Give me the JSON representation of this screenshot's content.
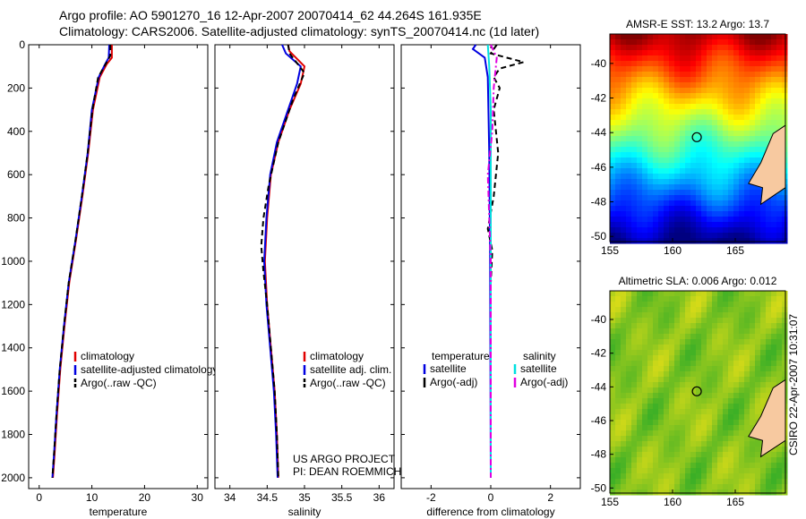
{
  "header": {
    "line1": "Argo profile: AO 5901270_16 12-Apr-2007 20070414_62 44.264S 161.935E",
    "line2": "Climatology: CARS2006. Satellite-adjusted climatology: synTS_20070414.nc (1d later)"
  },
  "side_label": "CSIRO 22-Apr-2007 10:31:07",
  "credit": [
    "US ARGO PROJECT",
    "PI: DEAN ROEMMICH"
  ],
  "colors": {
    "climatology": "#e00000",
    "satellite": "#0000e0",
    "argo": "#000000",
    "satellite_salinity": "#00e0e0",
    "argo_salinity": "#e000e0"
  },
  "chart_data": [
    {
      "type": "line",
      "xlabel": "temperature",
      "ylabel": "",
      "xlim": [
        -2,
        32
      ],
      "ylim": [
        2050,
        0
      ],
      "y_inverted": true,
      "xticks": [
        0,
        10,
        20,
        30
      ],
      "yticks": [
        0,
        200,
        400,
        600,
        800,
        1000,
        1200,
        1400,
        1600,
        1800,
        2000
      ],
      "legend": [
        "climatology",
        "satellite-adjusted climatology",
        "Argo(..raw -QC)"
      ],
      "legend_placement": "lower-right",
      "series": [
        {
          "name": "climatology",
          "color": "#e00000",
          "style": "solid",
          "points": [
            [
              13.8,
              0
            ],
            [
              13.8,
              60
            ],
            [
              12.8,
              90
            ],
            [
              11.5,
              150
            ],
            [
              10.2,
              300
            ],
            [
              9.3,
              500
            ],
            [
              8.2,
              700
            ],
            [
              7,
              900
            ],
            [
              5.7,
              1100
            ],
            [
              4.8,
              1300
            ],
            [
              4,
              1500
            ],
            [
              3.4,
              1700
            ],
            [
              2.9,
              1900
            ],
            [
              2.6,
              2000
            ]
          ]
        },
        {
          "name": "satellite-adjusted climatology",
          "color": "#0000e0",
          "style": "solid",
          "points": [
            [
              13.3,
              0
            ],
            [
              13.2,
              60
            ],
            [
              12.5,
              90
            ],
            [
              11.3,
              150
            ],
            [
              10,
              300
            ],
            [
              9.2,
              500
            ],
            [
              8.1,
              700
            ],
            [
              6.9,
              900
            ],
            [
              5.6,
              1100
            ],
            [
              4.7,
              1300
            ],
            [
              3.9,
              1500
            ],
            [
              3.3,
              1700
            ],
            [
              2.8,
              1900
            ],
            [
              2.5,
              2000
            ]
          ]
        },
        {
          "name": "Argo(..raw -QC)",
          "color": "#000000",
          "style": "dashed",
          "points": [
            [
              13.5,
              0
            ],
            [
              13.5,
              50
            ],
            [
              12.6,
              90
            ],
            [
              11.2,
              150
            ],
            [
              10.1,
              300
            ],
            [
              9.2,
              500
            ],
            [
              8.1,
              700
            ],
            [
              6.9,
              900
            ],
            [
              5.6,
              1100
            ],
            [
              4.7,
              1300
            ],
            [
              3.9,
              1500
            ],
            [
              3.3,
              1700
            ],
            [
              2.8,
              1900
            ],
            [
              2.5,
              2000
            ]
          ]
        }
      ]
    },
    {
      "type": "line",
      "xlabel": "salinity",
      "ylabel": "",
      "xlim": [
        33.8,
        36.2
      ],
      "ylim": [
        2050,
        0
      ],
      "y_inverted": true,
      "xticks": [
        34,
        34.5,
        35,
        35.5,
        36
      ],
      "xtick_labels": [
        "34",
        "34.5",
        "35",
        "35.5",
        "36"
      ],
      "legend": [
        "climatology",
        "satellite adj. clim.",
        "Argo(..raw -QC)"
      ],
      "legend_placement": "lower-right",
      "series": [
        {
          "name": "climatology",
          "color": "#e00000",
          "style": "solid",
          "points": [
            [
              34.78,
              0
            ],
            [
              34.8,
              30
            ],
            [
              35.0,
              100
            ],
            [
              34.95,
              180
            ],
            [
              34.8,
              300
            ],
            [
              34.65,
              450
            ],
            [
              34.55,
              600
            ],
            [
              34.5,
              800
            ],
            [
              34.47,
              1000
            ],
            [
              34.5,
              1200
            ],
            [
              34.55,
              1400
            ],
            [
              34.6,
              1600
            ],
            [
              34.63,
              1800
            ],
            [
              34.65,
              2000
            ]
          ]
        },
        {
          "name": "satellite adj. clim.",
          "color": "#0000e0",
          "style": "solid",
          "points": [
            [
              34.7,
              0
            ],
            [
              34.75,
              40
            ],
            [
              34.95,
              100
            ],
            [
              34.9,
              180
            ],
            [
              34.78,
              300
            ],
            [
              34.63,
              450
            ],
            [
              34.54,
              600
            ],
            [
              34.49,
              800
            ],
            [
              34.46,
              1000
            ],
            [
              34.49,
              1200
            ],
            [
              34.54,
              1400
            ],
            [
              34.59,
              1600
            ],
            [
              34.62,
              1800
            ],
            [
              34.64,
              2000
            ]
          ]
        },
        {
          "name": "Argo(..raw -QC)",
          "color": "#000000",
          "style": "dashed",
          "points": [
            [
              34.78,
              0
            ],
            [
              34.8,
              40
            ],
            [
              35.0,
              130
            ],
            [
              34.85,
              250
            ],
            [
              34.65,
              450
            ],
            [
              34.52,
              650
            ],
            [
              34.45,
              800
            ],
            [
              34.42,
              930
            ],
            [
              34.45,
              1050
            ],
            [
              34.5,
              1200
            ],
            [
              34.55,
              1400
            ],
            [
              34.6,
              1600
            ],
            [
              34.63,
              1800
            ],
            [
              34.65,
              2000
            ]
          ]
        }
      ]
    },
    {
      "type": "line",
      "xlabel": "difference from climatology",
      "ylabel": "",
      "xlim": [
        -3,
        3
      ],
      "ylim": [
        2050,
        0
      ],
      "y_inverted": true,
      "xticks": [
        -2,
        0,
        2
      ],
      "legend": [
        "temperature",
        "satellite",
        "Argo(-adj)",
        "salinity",
        "satellite",
        "Argo(-adj)"
      ],
      "legend_placement": "lower-center",
      "series": [
        {
          "name": "satellite",
          "group": "temperature",
          "color": "#0000e0",
          "style": "solid",
          "points": [
            [
              -0.5,
              0
            ],
            [
              -0.6,
              20
            ],
            [
              -0.2,
              60
            ],
            [
              -0.1,
              150
            ],
            [
              -0.05,
              500
            ],
            [
              -0.02,
              1000
            ],
            [
              0,
              2000
            ]
          ]
        },
        {
          "name": "Argo(-adj)",
          "group": "temperature",
          "color": "#000000",
          "style": "dashed",
          "points": [
            [
              0.2,
              0
            ],
            [
              0.0,
              40
            ],
            [
              1.1,
              80
            ],
            [
              0.3,
              110
            ],
            [
              0.1,
              150
            ],
            [
              0.3,
              200
            ],
            [
              0.1,
              300
            ],
            [
              0.25,
              500
            ],
            [
              0.1,
              700
            ],
            [
              -0.1,
              850
            ],
            [
              0.05,
              950
            ],
            [
              0,
              1100
            ],
            [
              0,
              2000
            ]
          ]
        },
        {
          "name": "satellite",
          "group": "salinity",
          "color": "#00e0e0",
          "style": "solid",
          "points": [
            [
              -0.1,
              0
            ],
            [
              -0.05,
              100
            ],
            [
              0,
              300
            ],
            [
              0,
              2000
            ]
          ]
        },
        {
          "name": "Argo(-adj)",
          "group": "salinity",
          "color": "#e000e0",
          "style": "dashdot",
          "points": [
            [
              0,
              0
            ],
            [
              0.2,
              60
            ],
            [
              0.1,
              200
            ],
            [
              0.05,
              400
            ],
            [
              -0.1,
              600
            ],
            [
              -0.05,
              800
            ],
            [
              0,
              1000
            ],
            [
              0,
              2000
            ]
          ]
        }
      ]
    },
    {
      "type": "heatmap",
      "title": "AMSR-E SST: 13.2 Argo: 13.7",
      "xlim": [
        155,
        169
      ],
      "ylim": [
        -50.3,
        -38.3
      ],
      "xticks": [
        155,
        160,
        165
      ],
      "yticks": [
        -40,
        -42,
        -44,
        -46,
        -48,
        -50
      ],
      "marker": [
        161.935,
        -44.264
      ],
      "colormap": "jet"
    },
    {
      "type": "heatmap",
      "title": "Altimetric SLA: 0.006 Argo: 0.012",
      "xlim": [
        155,
        169
      ],
      "ylim": [
        -50.3,
        -38.3
      ],
      "xticks": [
        155,
        160,
        165
      ],
      "yticks": [
        -40,
        -42,
        -44,
        -46,
        -48,
        -50
      ],
      "marker": [
        161.935,
        -44.264
      ],
      "colormap": "green-yellow"
    }
  ]
}
